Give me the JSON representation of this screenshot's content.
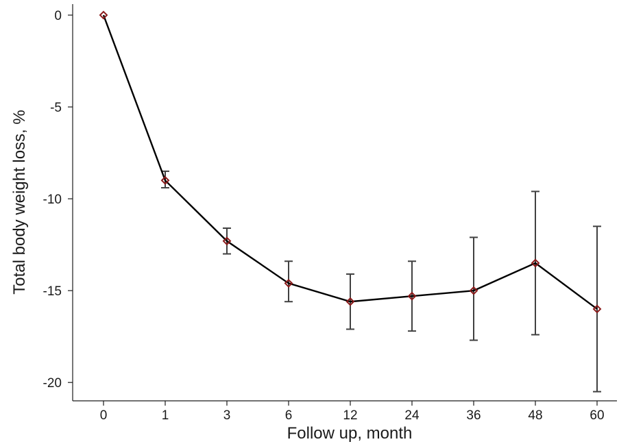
{
  "chart_data": {
    "type": "line",
    "xlabel": "Follow up, month",
    "ylabel": "Total body weight loss, %",
    "categories": [
      "0",
      "1",
      "3",
      "6",
      "12",
      "24",
      "36",
      "48",
      "60"
    ],
    "ylim": [
      -21,
      0.3
    ],
    "yticks": [
      0,
      -5,
      -10,
      -15,
      -20
    ],
    "grid": false,
    "series": [
      {
        "values": [
          0,
          -9.0,
          -12.3,
          -14.6,
          -15.6,
          -15.3,
          -15.0,
          -13.5,
          -16.0
        ],
        "error_upper": [
          0,
          -8.5,
          -11.6,
          -13.4,
          -14.1,
          -13.4,
          -12.1,
          -9.6,
          -11.5
        ],
        "error_lower": [
          0,
          -9.4,
          -13.0,
          -15.6,
          -17.1,
          -17.2,
          -17.7,
          -17.4,
          -20.5
        ]
      }
    ],
    "colors": {
      "line": "#000000",
      "marker": "#8b1a1a",
      "error_bar": "#404040"
    }
  }
}
